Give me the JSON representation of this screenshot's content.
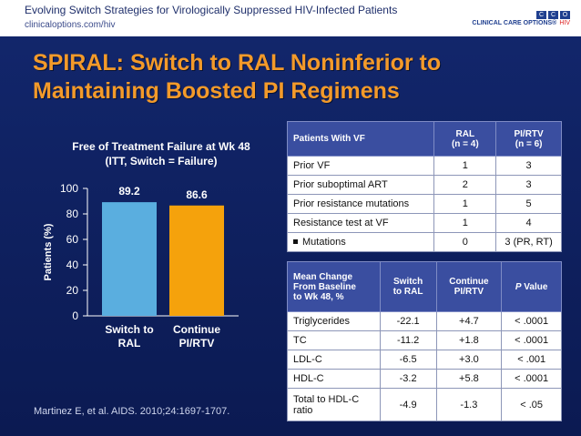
{
  "header": {
    "title": "Evolving Switch Strategies for Virologically Suppressed HIV-Infected Patients",
    "url": "clinicaloptions.com/hiv",
    "logo_top": "C C O",
    "logo_name": "CLINICAL CARE OPTIONS®",
    "logo_suffix": "HIV"
  },
  "slide": {
    "title_line1": "SPIRAL: Switch to RAL Noninferior to",
    "title_line2": "Maintaining Boosted PI Regimens",
    "citation": "Martinez E, et al. AIDS. 2010;24:1697-1707."
  },
  "colors": {
    "background": "#0f1e5a",
    "title": "#f39a2a",
    "bar_ral": "#5aaedf",
    "bar_pi": "#f5a20c",
    "table_header": "#3a4ea0"
  },
  "chart_data": {
    "type": "bar",
    "title_line1": "Free of Treatment Failure at Wk 48",
    "title_line2": "(ITT, Switch = Failure)",
    "ylabel": "Patients (%)",
    "ylim": [
      0,
      100
    ],
    "yticks": [
      "0",
      "20",
      "40",
      "60",
      "80",
      "100"
    ],
    "categories": [
      {
        "line1": "Switch to",
        "line2": "RAL"
      },
      {
        "line1": "Continue",
        "line2": "PI/RTV"
      }
    ],
    "values": [
      89.2,
      86.6
    ],
    "value_labels": [
      "89.2",
      "86.6"
    ],
    "grid": false,
    "legend": "none"
  },
  "table1": {
    "headers": {
      "col0": "Patients With VF",
      "col1_line1": "RAL",
      "col1_line2": "(n = 4)",
      "col2_line1": "PI/RTV",
      "col2_line2": "(n = 6)"
    },
    "rows": [
      {
        "label": "Prior VF",
        "ral": "1",
        "pi": "3"
      },
      {
        "label": "Prior suboptimal ART",
        "ral": "2",
        "pi": "3"
      },
      {
        "label": "Prior resistance mutations",
        "ral": "1",
        "pi": "5"
      },
      {
        "label": "Resistance test at VF",
        "ral": "1",
        "pi": "4"
      },
      {
        "label": "Mutations",
        "ral": "0",
        "pi": "3 (PR, RT)"
      }
    ]
  },
  "table2": {
    "headers": {
      "col0_line1": "Mean Change",
      "col0_line2": "From Baseline",
      "col0_line3": "to Wk 48, %",
      "col1_line1": "Switch",
      "col1_line2": "to RAL",
      "col2_line1": "Continue",
      "col2_line2": "PI/RTV",
      "col3_italic": "P",
      "col3_rest": " Value"
    },
    "rows": [
      {
        "label": "Triglycerides",
        "ral": "-22.1",
        "pi": "+4.7",
        "p": "< .0001"
      },
      {
        "label": "TC",
        "ral": "-11.2",
        "pi": "+1.8",
        "p": "< .0001"
      },
      {
        "label": "LDL-C",
        "ral": "-6.5",
        "pi": "+3.0",
        "p": "< .001"
      },
      {
        "label": "HDL-C",
        "ral": "-3.2",
        "pi": "+5.8",
        "p": "< .0001"
      },
      {
        "label_line1": "Total to HDL-C",
        "label_line2": "ratio",
        "ral": "-4.9",
        "pi": "-1.3",
        "p": "< .05"
      }
    ]
  }
}
